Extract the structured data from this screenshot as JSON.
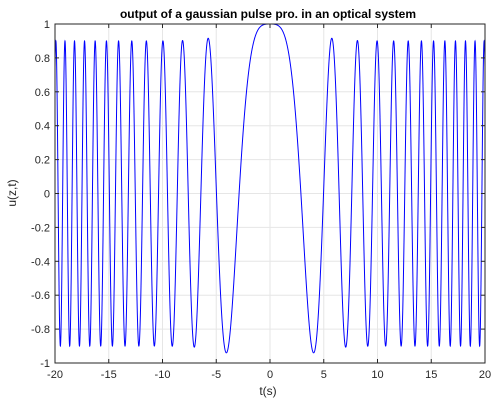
{
  "chart_data": {
    "type": "line",
    "title": "output of a gaussian pulse pro. in an optical system",
    "xlabel": "t(s)",
    "ylabel": "u(z,t)",
    "xlim": [
      -20,
      20
    ],
    "ylim": [
      -1,
      1
    ],
    "x_ticks": [
      -20,
      -15,
      -10,
      -5,
      0,
      5,
      10,
      15,
      20
    ],
    "x_tick_labels": [
      "-20",
      "-15",
      "-10",
      "-5",
      "0",
      "5",
      "10",
      "15",
      "20"
    ],
    "y_ticks": [
      -1,
      -0.8,
      -0.6,
      -0.4,
      -0.2,
      0,
      0.2,
      0.4,
      0.6,
      0.8,
      1
    ],
    "y_tick_labels": [
      "-1",
      "-0.8",
      "-0.6",
      "-0.4",
      "-0.2",
      "0",
      "0.2",
      "0.4",
      "0.6",
      "0.8",
      "1"
    ],
    "grid": true,
    "series": [
      {
        "color": "#0000ff",
        "description_model": {
          "form": "A(t) * cos(k * t^2)",
          "k": 0.19,
          "amplitude_at_center": 1,
          "amplitude_at_edges": 0.9,
          "sample_points": [
            {
              "x": -20,
              "y": 0.9
            },
            {
              "x": -3.6,
              "y": -0.97
            },
            {
              "x": 0,
              "y": 1.0
            },
            {
              "x": 3.6,
              "y": -0.97
            },
            {
              "x": 20,
              "y": 0.9
            }
          ]
        }
      }
    ],
    "colors": {
      "line": "#0000ff",
      "grid": "#e6e6e6",
      "axes": "#262626",
      "background": "#ffffff"
    }
  }
}
